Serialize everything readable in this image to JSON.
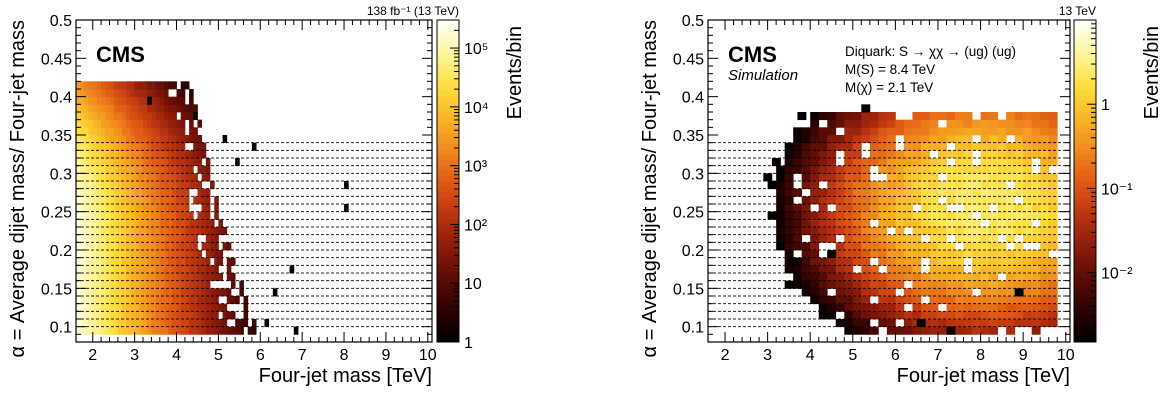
{
  "chart_data": [
    {
      "type": "heatmap",
      "title": "",
      "xlabel": "Four-jet mass [TeV]",
      "ylabel": "α = Average dijet mass/ Four-jet mass",
      "zlabel": "Events/bin",
      "lumi_label": "138 fb⁻¹ (13 TeV)",
      "experiment_label": "CMS",
      "sublabel": "",
      "info_lines": [],
      "xlim": [
        1.6,
        10.1
      ],
      "ylim": [
        0.08,
        0.5
      ],
      "x_ticks": [
        "2",
        "3",
        "4",
        "5",
        "6",
        "7",
        "8",
        "9",
        "10"
      ],
      "y_ticks": [
        "0.1",
        "0.15",
        "0.2",
        "0.25",
        "0.3",
        "0.35",
        "0.4",
        "0.45",
        "0.5"
      ],
      "z_scale": "log",
      "zlim": [
        1,
        300000
      ],
      "z_ticks": [
        "1",
        "10",
        "10²",
        "10³",
        "10⁴",
        "10⁵"
      ],
      "colormap": [
        "#000000",
        "#2a0302",
        "#5b0c06",
        "#8c1c0a",
        "#bd3510",
        "#e05a14",
        "#f08a1c",
        "#f8b825",
        "#fce040",
        "#fdf6a0",
        "#ffffff"
      ],
      "alpha_bin_edges": [
        0.1,
        0.11,
        0.12,
        0.13,
        0.14,
        0.15,
        0.16,
        0.17,
        0.18,
        0.19,
        0.2,
        0.21,
        0.22,
        0.23,
        0.24,
        0.25,
        0.26,
        0.27,
        0.28,
        0.29,
        0.3,
        0.31,
        0.32,
        0.33,
        0.34
      ],
      "grid": "dashed horizontal lines at alpha bin edges",
      "distribution": {
        "kind": "background",
        "x_start": 1.6,
        "x_max_low_alpha": 6.0,
        "x_max_high_alpha": 4.3,
        "alpha_max": 0.42,
        "peak_events": 200000,
        "x_bin_width": 0.1,
        "y_bin_width": 0.01
      },
      "sparse_bins": [
        [
          6.8,
          0.095
        ],
        [
          6.1,
          0.105
        ],
        [
          6.7,
          0.175
        ],
        [
          8.0,
          0.255
        ],
        [
          8.0,
          0.285
        ],
        [
          5.8,
          0.335
        ],
        [
          5.4,
          0.315
        ],
        [
          5.1,
          0.345
        ],
        [
          4.4,
          0.375
        ],
        [
          3.3,
          0.395
        ],
        [
          6.3,
          0.145
        ]
      ]
    },
    {
      "type": "heatmap",
      "title": "",
      "xlabel": "Four-jet mass [TeV]",
      "ylabel": "α = Average dijet mass/ Four-jet mass",
      "zlabel": "Events/bin",
      "lumi_label": "13 TeV",
      "experiment_label": "CMS",
      "sublabel": "Simulation",
      "info_lines": [
        "Diquark: S → χχ → (ug) (ug)",
        "M(S) = 8.4 TeV",
        "M(χ) = 2.1 TeV"
      ],
      "xlim": [
        1.6,
        10.1
      ],
      "ylim": [
        0.08,
        0.5
      ],
      "x_ticks": [
        "2",
        "3",
        "4",
        "5",
        "6",
        "7",
        "8",
        "9",
        "10"
      ],
      "y_ticks": [
        "0.1",
        "0.15",
        "0.2",
        "0.25",
        "0.3",
        "0.35",
        "0.4",
        "0.45",
        "0.5"
      ],
      "z_scale": "log",
      "zlim": [
        0.0015,
        10
      ],
      "z_ticks": [
        "10⁻²",
        "10⁻¹",
        "1"
      ],
      "colormap": [
        "#000000",
        "#2a0302",
        "#5b0c06",
        "#8c1c0a",
        "#bd3510",
        "#e05a14",
        "#f08a1c",
        "#f8b825",
        "#fce040",
        "#fdf6a0",
        "#ffffff"
      ],
      "alpha_bin_edges": [
        0.1,
        0.11,
        0.12,
        0.13,
        0.14,
        0.15,
        0.16,
        0.17,
        0.18,
        0.19,
        0.2,
        0.21,
        0.22,
        0.23,
        0.24,
        0.25,
        0.26,
        0.27,
        0.28,
        0.29,
        0.3,
        0.31,
        0.32,
        0.33,
        0.34
      ],
      "grid": "dashed horizontal lines at alpha bin edges",
      "distribution": {
        "kind": "signal",
        "peak_x": 8.0,
        "peak_alpha": 0.25,
        "peak_events": 2.5,
        "x_bin_width": 0.2,
        "y_bin_width": 0.01
      },
      "sparse_bins": [
        [
          2.9,
          0.295
        ],
        [
          3.1,
          0.315
        ],
        [
          3.5,
          0.185
        ],
        [
          3.4,
          0.155
        ],
        [
          4.4,
          0.195
        ],
        [
          7.2,
          0.095
        ],
        [
          6.5,
          0.105
        ],
        [
          8.8,
          0.145
        ],
        [
          3.7,
          0.375
        ],
        [
          5.2,
          0.385
        ]
      ]
    }
  ]
}
